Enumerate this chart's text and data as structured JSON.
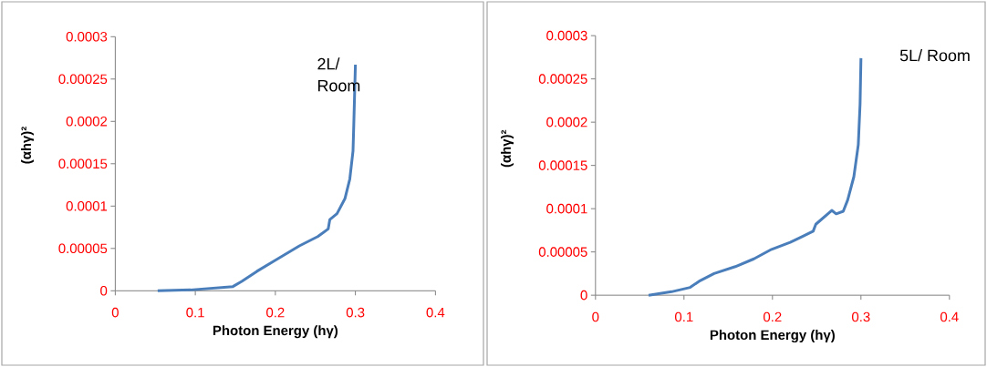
{
  "chart_data": [
    {
      "type": "line",
      "xlabel": "Photon Energy (hγ)",
      "ylabel": "(αhγ)²",
      "annotations": [
        "2L/ Room"
      ],
      "xlim": [
        0,
        0.4
      ],
      "xticks": [
        0,
        0.1,
        0.2,
        0.3,
        0.4
      ],
      "ylim": [
        0,
        0.0003
      ],
      "yticks": [
        0,
        {
          "value": 5e-05,
          "label": "0.00005"
        },
        0.0001,
        0.00015,
        0.0002,
        0.00025,
        0.0003
      ],
      "marker": "none",
      "line_style": "solid",
      "series": [
        {
          "color": "#4a7ebb",
          "x": [
            0.053,
            0.094,
            0.147,
            0.158,
            0.177,
            0.2,
            0.23,
            0.253,
            0.266,
            0.268,
            0.277,
            0.287,
            0.293,
            0.297,
            0.298,
            0.3
          ],
          "values": [
            0,
            1e-06,
            5e-06,
            1.1e-05,
            2.3e-05,
            3.6e-05,
            5.3e-05,
            6.4e-05,
            7.3e-05,
            8.4e-05,
            9.1e-05,
            0.000109,
            0.000132,
            0.000165,
            0.000197,
            0.000267
          ]
        }
      ]
    },
    {
      "type": "line",
      "xlabel": "Photon Energy (hγ)",
      "ylabel": "(αhγ)²",
      "annotations": [
        "5L/ Room"
      ],
      "xlim": [
        0,
        0.4
      ],
      "xticks": [
        0,
        0.1,
        0.2,
        0.3,
        0.4
      ],
      "ylim": [
        0,
        0.0003
      ],
      "yticks": [
        0,
        {
          "value": 5e-05,
          "label": "0.00005"
        },
        0.0001,
        0.00015,
        0.0002,
        0.00025,
        0.0003
      ],
      "marker": "none",
      "line_style": "solid",
      "series": [
        {
          "color": "#4a7ebb",
          "x": [
            0.06,
            0.086,
            0.107,
            0.117,
            0.134,
            0.158,
            0.179,
            0.199,
            0.22,
            0.234,
            0.246,
            0.249,
            0.267,
            0.272,
            0.28,
            0.285,
            0.292,
            0.297,
            0.299,
            0.3
          ],
          "values": [
            0,
            4e-06,
            9e-06,
            1.6e-05,
            2.5e-05,
            3.3e-05,
            4.2e-05,
            5.3e-05,
            6.1e-05,
            6.8e-05,
            7.4e-05,
            8.2e-05,
            9.8e-05,
            9.4e-05,
            9.7e-05,
            0.00011,
            0.000137,
            0.000174,
            0.000221,
            0.000274
          ]
        }
      ]
    }
  ]
}
